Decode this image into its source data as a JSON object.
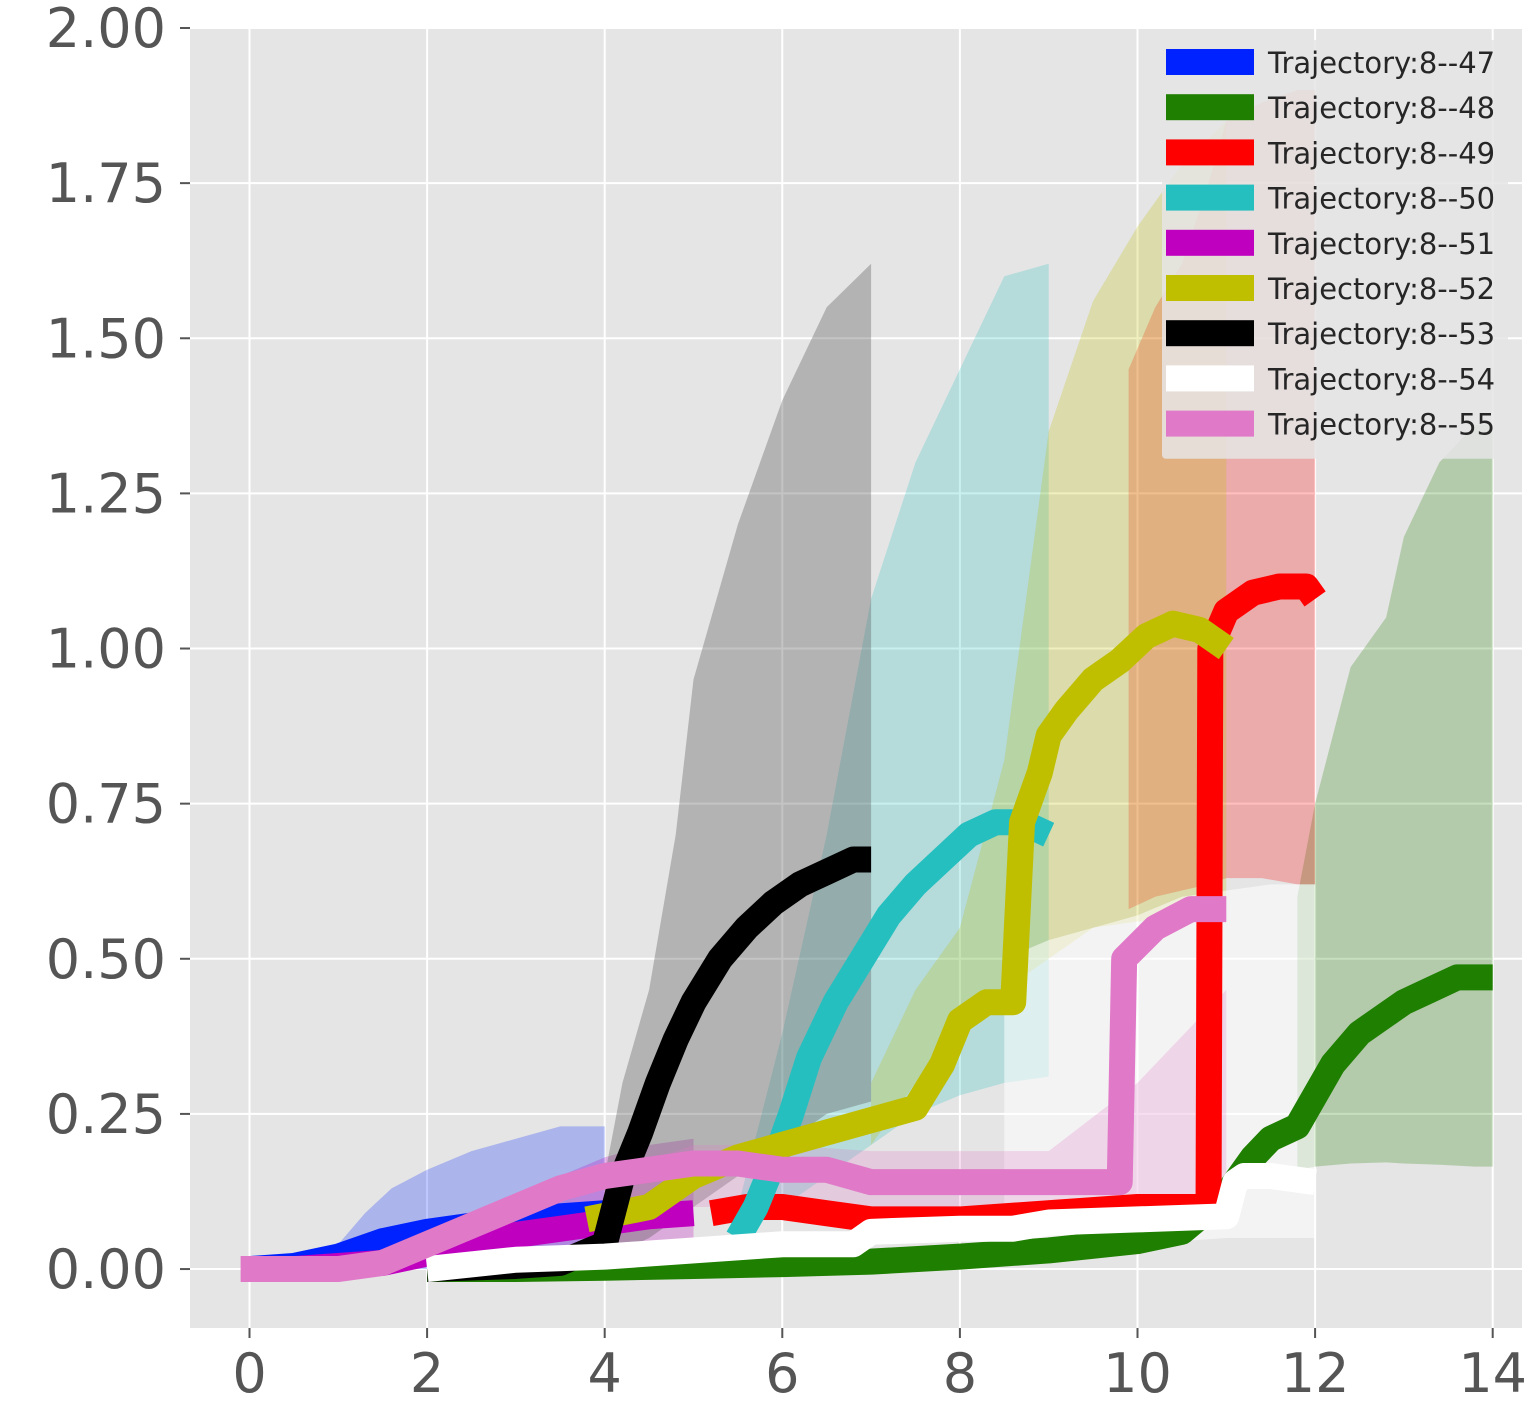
{
  "chart_data": {
    "type": "line",
    "title": "",
    "xlabel": "",
    "ylabel": "",
    "xlim": [
      -0.67,
      14.33
    ],
    "ylim": [
      -0.095,
      2.0
    ],
    "xticks": [
      0,
      2,
      4,
      6,
      8,
      10,
      12,
      14
    ],
    "xtick_labels": [
      "0",
      "2",
      "4",
      "6",
      "8",
      "10",
      "12",
      "14"
    ],
    "yticks": [
      0,
      0.25,
      0.5,
      0.75,
      1.0,
      1.25,
      1.5,
      1.75,
      2.0
    ],
    "ytick_labels": [
      "0.00",
      "0.25",
      "0.50",
      "0.75",
      "1.00",
      "1.25",
      "1.50",
      "1.75",
      "2.00"
    ],
    "grid": true,
    "legend_position": "top-right",
    "colors": {
      "background": "#e5e5e5",
      "grid": "#ffffff",
      "tick_text": "#555555"
    },
    "series": [
      {
        "name": "Trajectory:8--47",
        "color": "#0022ff",
        "x": [
          0,
          0.5,
          1.0,
          1.5,
          2.0,
          2.5,
          3.0,
          3.5,
          4.0
        ],
        "y": [
          0.0,
          0.005,
          0.02,
          0.045,
          0.06,
          0.07,
          0.08,
          0.085,
          0.09
        ],
        "band_x": [
          0,
          0.5,
          1.0,
          1.3,
          1.6,
          2.0,
          2.5,
          3.0,
          3.5,
          4.0
        ],
        "band_low": [
          0.0,
          0.0,
          0.0,
          0.0,
          0.0,
          0.0,
          0.0,
          0.0,
          0.0,
          0.0
        ],
        "band_high": [
          0.0,
          0.01,
          0.04,
          0.09,
          0.13,
          0.16,
          0.19,
          0.21,
          0.23,
          0.23
        ]
      },
      {
        "name": "Trajectory:8--48",
        "color": "#1f7f00",
        "x": [
          2,
          3,
          4,
          5,
          6,
          7,
          8,
          9,
          10,
          10.5,
          11,
          11.3,
          11.5,
          11.8,
          12.0,
          12.2,
          12.5,
          12.8,
          13.0,
          13.3,
          13.6,
          14.0
        ],
        "y": [
          0.0,
          0.0,
          0.002,
          0.005,
          0.008,
          0.012,
          0.02,
          0.03,
          0.045,
          0.06,
          0.12,
          0.18,
          0.21,
          0.23,
          0.28,
          0.33,
          0.38,
          0.41,
          0.43,
          0.45,
          0.47,
          0.47
        ],
        "band_x": [
          11.8,
          12.0,
          12.4,
          12.8,
          13.0,
          13.4,
          13.8,
          14.0
        ],
        "band_low": [
          0.16,
          0.165,
          0.17,
          0.172,
          0.17,
          0.168,
          0.165,
          0.165
        ],
        "band_high": [
          0.6,
          0.75,
          0.97,
          1.05,
          1.18,
          1.3,
          1.36,
          1.36
        ]
      },
      {
        "name": "Trajectory:8--49",
        "color": "#ff0000",
        "x": [
          5.2,
          5.6,
          6.0,
          6.5,
          7.0,
          8.0,
          9.0,
          10.0,
          10.8,
          10.82,
          11.0,
          11.3,
          11.6,
          11.9,
          12.0
        ],
        "y": [
          0.09,
          0.1,
          0.1,
          0.09,
          0.08,
          0.08,
          0.09,
          0.1,
          0.1,
          1.0,
          1.06,
          1.09,
          1.1,
          1.1,
          1.08
        ],
        "band_x": [
          9.9,
          10.2,
          10.5,
          10.8,
          11.0,
          11.4,
          11.8,
          12.0
        ],
        "band_low": [
          0.58,
          0.6,
          0.61,
          0.62,
          0.63,
          0.63,
          0.62,
          0.62
        ],
        "band_high": [
          1.45,
          1.55,
          1.62,
          1.75,
          1.85,
          1.88,
          1.9,
          1.9
        ]
      },
      {
        "name": "Trajectory:8--50",
        "color": "#26bfbf",
        "x": [
          5.5,
          5.7,
          5.9,
          6.1,
          6.3,
          6.6,
          6.9,
          7.2,
          7.5,
          7.8,
          8.1,
          8.4,
          8.7,
          9.0
        ],
        "y": [
          0.05,
          0.1,
          0.17,
          0.25,
          0.34,
          0.43,
          0.5,
          0.57,
          0.62,
          0.66,
          0.7,
          0.72,
          0.72,
          0.7
        ],
        "band_x": [
          5.5,
          6.0,
          6.5,
          7.0,
          7.5,
          8.0,
          8.5,
          9.0
        ],
        "band_low": [
          0.05,
          0.1,
          0.15,
          0.2,
          0.25,
          0.28,
          0.3,
          0.31
        ],
        "band_high": [
          0.1,
          0.38,
          0.7,
          1.08,
          1.3,
          1.45,
          1.6,
          1.62
        ]
      },
      {
        "name": "Trajectory:8--51",
        "color": "#bf00bf",
        "x": [
          0.5,
          1.5,
          2.0,
          2.5,
          3.0,
          3.5,
          4.0,
          4.5,
          5.0
        ],
        "y": [
          0.0,
          0.01,
          0.025,
          0.04,
          0.055,
          0.065,
          0.075,
          0.085,
          0.09
        ],
        "band_x": [
          3.0,
          3.5,
          4.0,
          4.5,
          5.0
        ],
        "band_low": [
          0.0,
          0.0,
          0.0,
          0.0,
          0.0
        ],
        "band_high": [
          0.1,
          0.15,
          0.18,
          0.2,
          0.21
        ]
      },
      {
        "name": "Trajectory:8--52",
        "color": "#bfbf00",
        "x": [
          3.8,
          4.5,
          5.0,
          5.5,
          6.0,
          6.5,
          7.0,
          7.5,
          7.8,
          8.0,
          8.3,
          8.6,
          8.7,
          8.9,
          9.0,
          9.2,
          9.5,
          9.8,
          10.1,
          10.4,
          10.7,
          11.0
        ],
        "y": [
          0.08,
          0.1,
          0.15,
          0.18,
          0.2,
          0.22,
          0.24,
          0.26,
          0.33,
          0.4,
          0.43,
          0.43,
          0.72,
          0.8,
          0.86,
          0.9,
          0.95,
          0.98,
          1.02,
          1.04,
          1.03,
          1.0
        ],
        "band_x": [
          7.0,
          7.5,
          8.0,
          8.5,
          9.0,
          9.5,
          10.0,
          10.5,
          11.0
        ],
        "band_low": [
          0.2,
          0.3,
          0.4,
          0.45,
          0.5,
          0.55,
          0.56,
          0.57,
          0.58
        ],
        "band_high": [
          0.3,
          0.45,
          0.55,
          0.82,
          1.35,
          1.56,
          1.68,
          1.78,
          1.85
        ]
      },
      {
        "name": "Trajectory:8--53",
        "color": "#000000",
        "x": [
          2.0,
          3.0,
          3.5,
          4.0,
          4.2,
          4.4,
          4.6,
          4.8,
          5.0,
          5.3,
          5.6,
          5.9,
          6.2,
          6.5,
          6.8,
          7.0
        ],
        "y": [
          0.0,
          0.005,
          0.01,
          0.04,
          0.15,
          0.22,
          0.3,
          0.37,
          0.43,
          0.5,
          0.55,
          0.59,
          0.62,
          0.64,
          0.66,
          0.66
        ],
        "band_x": [
          4.0,
          4.2,
          4.5,
          4.8,
          5.0,
          5.5,
          6.0,
          6.5,
          7.0
        ],
        "band_low": [
          0.02,
          0.03,
          0.05,
          0.08,
          0.1,
          0.15,
          0.2,
          0.25,
          0.27
        ],
        "band_high": [
          0.15,
          0.3,
          0.45,
          0.7,
          0.95,
          1.2,
          1.4,
          1.55,
          1.62
        ]
      },
      {
        "name": "Trajectory:8--54",
        "color": "#ffffff",
        "x": [
          2.0,
          3.0,
          4.0,
          5.0,
          6.0,
          6.8,
          7.0,
          8.0,
          8.6,
          9.0,
          10.0,
          11.0,
          11.1,
          11.2,
          11.5,
          12.0
        ],
        "y": [
          0.0,
          0.015,
          0.02,
          0.03,
          0.04,
          0.04,
          0.06,
          0.065,
          0.065,
          0.075,
          0.08,
          0.085,
          0.14,
          0.15,
          0.15,
          0.14
        ],
        "band_x": [
          8.5,
          9.0,
          9.5,
          10.0,
          10.5,
          11.0,
          11.5,
          12.0
        ],
        "band_low": [
          0.03,
          0.035,
          0.04,
          0.04,
          0.045,
          0.05,
          0.05,
          0.05
        ],
        "band_high": [
          0.5,
          0.53,
          0.55,
          0.57,
          0.6,
          0.61,
          0.62,
          0.62
        ]
      },
      {
        "name": "Trajectory:8--55",
        "color": "#e07ac8",
        "x": [
          -0.1,
          1.0,
          1.5,
          2.0,
          2.5,
          3.0,
          3.5,
          4.0,
          4.5,
          5.0,
          5.5,
          6.0,
          6.5,
          7.0,
          8.0,
          9.0,
          9.8,
          9.85,
          10.2,
          10.6,
          11.0
        ],
        "y": [
          0.0,
          0.0,
          0.01,
          0.04,
          0.07,
          0.1,
          0.13,
          0.15,
          0.16,
          0.17,
          0.17,
          0.16,
          0.16,
          0.14,
          0.14,
          0.14,
          0.14,
          0.5,
          0.55,
          0.58,
          0.58
        ],
        "band_x": [
          3.5,
          4.0,
          5.0,
          6.0,
          7.0,
          8.0,
          9.0,
          10.0,
          11.0
        ],
        "band_low": [
          0.05,
          0.08,
          0.1,
          0.1,
          0.1,
          0.1,
          0.1,
          0.1,
          0.1
        ],
        "band_high": [
          0.1,
          0.15,
          0.2,
          0.2,
          0.19,
          0.19,
          0.19,
          0.3,
          0.45
        ]
      }
    ]
  }
}
